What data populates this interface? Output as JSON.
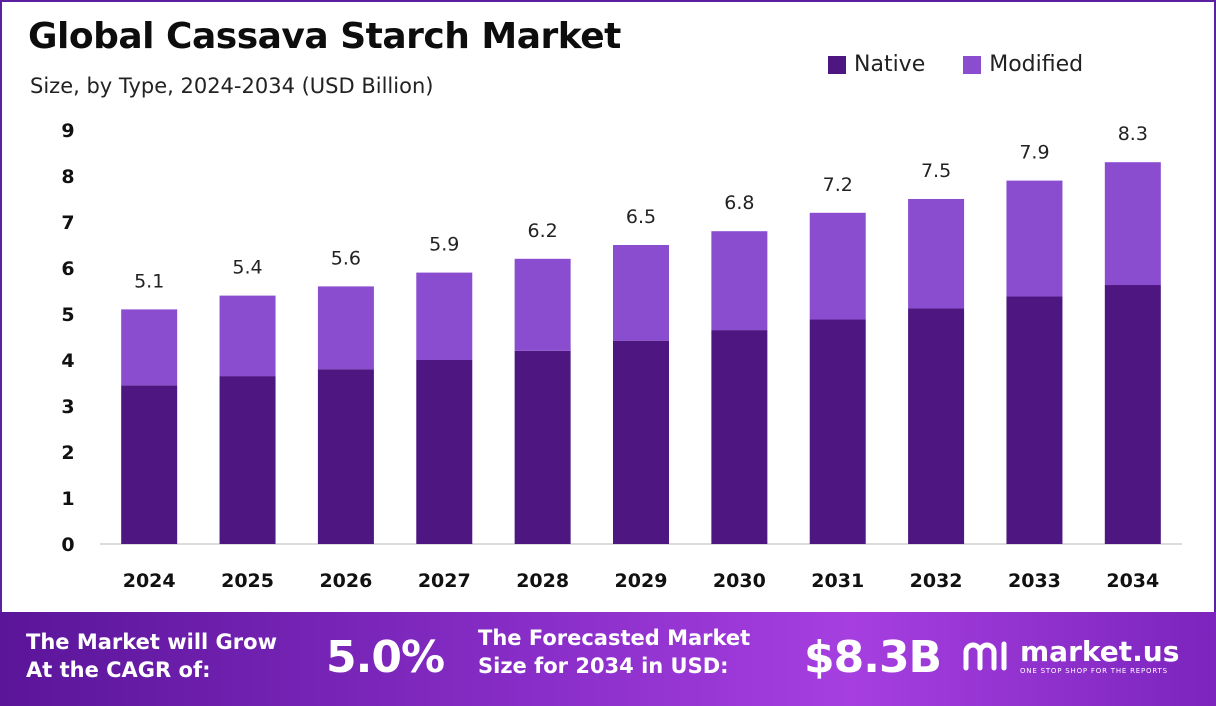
{
  "header": {
    "title": "Global Cassava Starch Market",
    "subtitle": "Size, by Type, 2024-2034 (USD Billion)"
  },
  "legend": [
    {
      "label": "Native",
      "color": "#4e1681"
    },
    {
      "label": "Modified",
      "color": "#8b4dcf"
    }
  ],
  "chart_data": {
    "type": "bar",
    "stacked": true,
    "title": "Global Cassava Starch Market",
    "subtitle": "Size, by Type, 2024-2034 (USD Billion)",
    "xlabel": "",
    "ylabel": "",
    "ylim": [
      0,
      9
    ],
    "yticks": [
      "0",
      "1",
      "2",
      "3",
      "4",
      "5",
      "6",
      "7",
      "8",
      "9"
    ],
    "grid": false,
    "legend_position": "top-right",
    "categories": [
      "2024",
      "2025",
      "2026",
      "2027",
      "2028",
      "2029",
      "2030",
      "2031",
      "2032",
      "2033",
      "2034"
    ],
    "series": [
      {
        "name": "Native",
        "color": "#4e1681",
        "values": [
          3.45,
          3.65,
          3.8,
          4.0,
          4.2,
          4.42,
          4.65,
          4.88,
          5.12,
          5.38,
          5.63
        ]
      },
      {
        "name": "Modified",
        "color": "#8b4dcf",
        "values": [
          1.65,
          1.75,
          1.8,
          1.9,
          2.0,
          2.08,
          2.15,
          2.32,
          2.38,
          2.52,
          2.67
        ]
      }
    ],
    "totals": [
      5.1,
      5.4,
      5.6,
      5.9,
      6.2,
      6.5,
      6.8,
      7.2,
      7.5,
      7.9,
      8.3
    ],
    "total_labels": [
      "5.1",
      "5.4",
      "5.6",
      "5.9",
      "6.2",
      "6.5",
      "6.8",
      "7.2",
      "7.5",
      "7.9",
      "8.3"
    ]
  },
  "banner": {
    "cagr_line1": "The Market will Grow",
    "cagr_line2": "At the CAGR of:",
    "cagr_value": "5.0%",
    "forecast_line1": "The Forecasted Market",
    "forecast_line2": "Size for 2034 in USD:",
    "forecast_value": "$8.3B",
    "brand_name": "market.us",
    "brand_tagline": "ONE STOP SHOP FOR THE REPORTS"
  }
}
